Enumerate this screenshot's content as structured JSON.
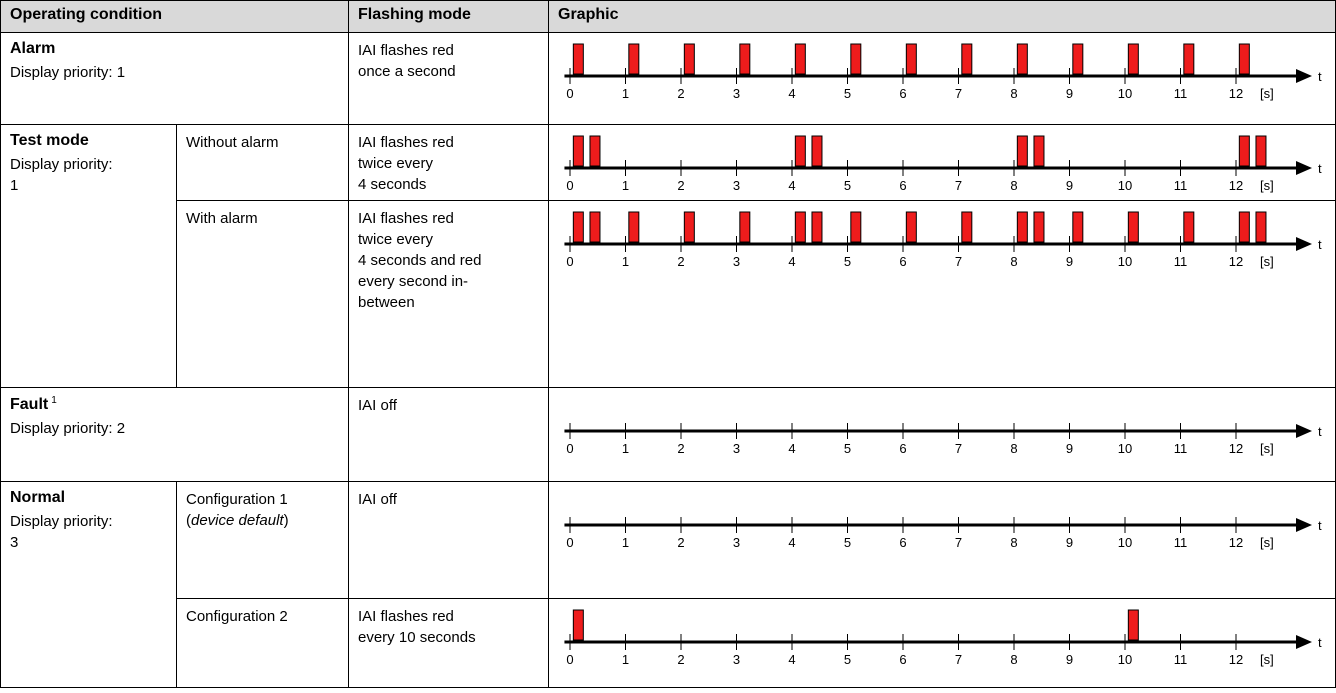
{
  "header": {
    "col1": "Operating condition",
    "col2": "Flashing mode",
    "col3": "Graphic"
  },
  "axis": {
    "ticks": [
      "0",
      "1",
      "2",
      "3",
      "4",
      "5",
      "6",
      "7",
      "8",
      "9",
      "10",
      "11",
      "12"
    ],
    "unit": "[s]",
    "t_label": "t"
  },
  "colors": {
    "flash": "#ee1c1c",
    "header_bg": "#d9d9d9"
  },
  "rows": [
    {
      "condition": "Alarm",
      "sup": "",
      "priority": "Display priority: 1",
      "subcondition": "",
      "mode": [
        "IAI flashes red",
        "once a second"
      ],
      "flashes": [
        0.15,
        1.15,
        2.15,
        3.15,
        4.15,
        5.15,
        6.15,
        7.15,
        8.15,
        9.15,
        10.15,
        11.15,
        12.15
      ]
    },
    {
      "condition": "Test mode",
      "sup": "",
      "priority": "Display priority:\n1",
      "subcondition": "Without alarm",
      "mode": [
        "IAI flashes red",
        "twice every",
        "4 seconds"
      ],
      "flashes": [
        0.15,
        0.45,
        4.15,
        4.45,
        8.15,
        8.45,
        12.15,
        12.45
      ]
    },
    {
      "condition": "",
      "sup": "",
      "priority": "",
      "subcondition": "With alarm",
      "mode": [
        "IAI flashes red",
        "twice every",
        "4 seconds and red",
        "every second in-",
        "between"
      ],
      "flashes": [
        0.15,
        0.45,
        1.15,
        2.15,
        3.15,
        4.15,
        4.45,
        5.15,
        6.15,
        7.15,
        8.15,
        8.45,
        9.15,
        10.15,
        11.15,
        12.15,
        12.45
      ]
    },
    {
      "condition": "Fault",
      "sup": "1",
      "priority": "Display priority: 2",
      "subcondition": "",
      "mode": [
        "IAI off"
      ],
      "flashes": []
    },
    {
      "condition": "Normal",
      "sup": "",
      "priority": "Display priority:\n3",
      "subcondition": "Configuration 1",
      "subcondition_extra": "device default",
      "mode": [
        "IAI off"
      ],
      "flashes": []
    },
    {
      "condition": "",
      "sup": "",
      "priority": "",
      "subcondition": "Configuration 2",
      "mode": [
        "IAI flashes red",
        "every 10 seconds"
      ],
      "flashes": [
        0.15,
        10.15
      ]
    }
  ]
}
